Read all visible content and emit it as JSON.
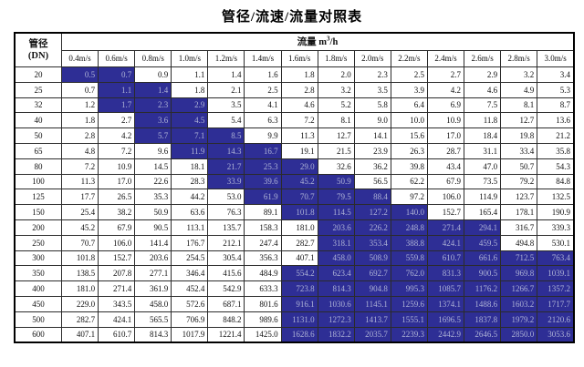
{
  "title": "管径/流速/流量对照表",
  "colors": {
    "highlight_bg": "#2e2e95",
    "highlight_text": "#aeb3d6",
    "border": "#000000",
    "page_bg": "#ffffff"
  },
  "table": {
    "corner_header": {
      "line1": "管径",
      "line2": "(DN)"
    },
    "flow_header": {
      "prefix": "流量 m",
      "sup": "3",
      "suffix": "/h"
    },
    "velocity_headers": [
      "0.4m/s",
      "0.6m/s",
      "0.8m/s",
      "1.0m/s",
      "1.2m/s",
      "1.4m/s",
      "1.6m/s",
      "1.8m/s",
      "2.0m/s",
      "2.2m/s",
      "2.4m/s",
      "2.6m/s",
      "2.8m/s",
      "3.0m/s"
    ],
    "rows": [
      {
        "dn": "20",
        "values": [
          "0.5",
          "0.7",
          "0.9",
          "1.1",
          "1.4",
          "1.6",
          "1.8",
          "2.0",
          "2.3",
          "2.5",
          "2.7",
          "2.9",
          "3.2",
          "3.4"
        ],
        "highlight": [
          0,
          1
        ]
      },
      {
        "dn": "25",
        "values": [
          "0.7",
          "1.1",
          "1.4",
          "1.8",
          "2.1",
          "2.5",
          "2.8",
          "3.2",
          "3.5",
          "3.9",
          "4.2",
          "4.6",
          "4.9",
          "5.3"
        ],
        "highlight": [
          1,
          2
        ]
      },
      {
        "dn": "32",
        "values": [
          "1.2",
          "1.7",
          "2.3",
          "2.9",
          "3.5",
          "4.1",
          "4.6",
          "5.2",
          "5.8",
          "6.4",
          "6.9",
          "7.5",
          "8.1",
          "8.7"
        ],
        "highlight": [
          1,
          2,
          3
        ]
      },
      {
        "dn": "40",
        "values": [
          "1.8",
          "2.7",
          "3.6",
          "4.5",
          "5.4",
          "6.3",
          "7.2",
          "8.1",
          "9.0",
          "10.0",
          "10.9",
          "11.8",
          "12.7",
          "13.6"
        ],
        "highlight": [
          2,
          3
        ]
      },
      {
        "dn": "50",
        "values": [
          "2.8",
          "4.2",
          "5.7",
          "7.1",
          "8.5",
          "9.9",
          "11.3",
          "12.7",
          "14.1",
          "15.6",
          "17.0",
          "18.4",
          "19.8",
          "21.2"
        ],
        "highlight": [
          2,
          3,
          4
        ]
      },
      {
        "dn": "65",
        "values": [
          "4.8",
          "7.2",
          "9.6",
          "11.9",
          "14.3",
          "16.7",
          "19.1",
          "21.5",
          "23.9",
          "26.3",
          "28.7",
          "31.1",
          "33.4",
          "35.8"
        ],
        "highlight": [
          3,
          4,
          5
        ]
      },
      {
        "dn": "80",
        "values": [
          "7.2",
          "10.9",
          "14.5",
          "18.1",
          "21.7",
          "25.3",
          "29.0",
          "32.6",
          "36.2",
          "39.8",
          "43.4",
          "47.0",
          "50.7",
          "54.3"
        ],
        "highlight": [
          4,
          5,
          6
        ]
      },
      {
        "dn": "100",
        "values": [
          "11.3",
          "17.0",
          "22.6",
          "28.3",
          "33.9",
          "39.6",
          "45.2",
          "50.9",
          "56.5",
          "62.2",
          "67.9",
          "73.5",
          "79.2",
          "84.8"
        ],
        "highlight": [
          4,
          5,
          6,
          7
        ]
      },
      {
        "dn": "125",
        "values": [
          "17.7",
          "26.5",
          "35.3",
          "44.2",
          "53.0",
          "61.9",
          "70.7",
          "79.5",
          "88.4",
          "97.2",
          "106.0",
          "114.9",
          "123.7",
          "132.5"
        ],
        "highlight": [
          5,
          6,
          7,
          8
        ]
      },
      {
        "dn": "150",
        "values": [
          "25.4",
          "38.2",
          "50.9",
          "63.6",
          "76.3",
          "89.1",
          "101.8",
          "114.5",
          "127.2",
          "140.0",
          "152.7",
          "165.4",
          "178.1",
          "190.9"
        ],
        "highlight": [
          6,
          7,
          8,
          9
        ]
      },
      {
        "dn": "200",
        "values": [
          "45.2",
          "67.9",
          "90.5",
          "113.1",
          "135.7",
          "158.3",
          "181.0",
          "203.6",
          "226.2",
          "248.8",
          "271.4",
          "294.1",
          "316.7",
          "339.3"
        ],
        "highlight": [
          7,
          8,
          9,
          10,
          11
        ]
      },
      {
        "dn": "250",
        "values": [
          "70.7",
          "106.0",
          "141.4",
          "176.7",
          "212.1",
          "247.4",
          "282.7",
          "318.1",
          "353.4",
          "388.8",
          "424.1",
          "459.5",
          "494.8",
          "530.1"
        ],
        "highlight": [
          7,
          8,
          9,
          10,
          11
        ]
      },
      {
        "dn": "300",
        "values": [
          "101.8",
          "152.7",
          "203.6",
          "254.5",
          "305.4",
          "356.3",
          "407.1",
          "458.0",
          "508.9",
          "559.8",
          "610.7",
          "661.6",
          "712.5",
          "763.4"
        ],
        "highlight": [
          7,
          8,
          9,
          10,
          11,
          12,
          13
        ]
      },
      {
        "dn": "350",
        "values": [
          "138.5",
          "207.8",
          "277.1",
          "346.4",
          "415.6",
          "484.9",
          "554.2",
          "623.4",
          "692.7",
          "762.0",
          "831.3",
          "900.5",
          "969.8",
          "1039.1"
        ],
        "highlight": [
          6,
          7,
          8,
          9,
          10,
          11,
          12,
          13
        ]
      },
      {
        "dn": "400",
        "values": [
          "181.0",
          "271.4",
          "361.9",
          "452.4",
          "542.9",
          "633.3",
          "723.8",
          "814.3",
          "904.8",
          "995.3",
          "1085.7",
          "1176.2",
          "1266.7",
          "1357.2"
        ],
        "highlight": [
          6,
          7,
          8,
          9,
          10,
          11,
          12,
          13
        ]
      },
      {
        "dn": "450",
        "values": [
          "229.0",
          "343.5",
          "458.0",
          "572.6",
          "687.1",
          "801.6",
          "916.1",
          "1030.6",
          "1145.1",
          "1259.6",
          "1374.1",
          "1488.6",
          "1603.2",
          "1717.7"
        ],
        "highlight": [
          6,
          7,
          8,
          9,
          10,
          11,
          12,
          13
        ]
      },
      {
        "dn": "500",
        "values": [
          "282.7",
          "424.1",
          "565.5",
          "706.9",
          "848.2",
          "989.6",
          "1131.0",
          "1272.3",
          "1413.7",
          "1555.1",
          "1696.5",
          "1837.8",
          "1979.2",
          "2120.6"
        ],
        "highlight": [
          6,
          7,
          8,
          9,
          10,
          11,
          12,
          13
        ]
      },
      {
        "dn": "600",
        "values": [
          "407.1",
          "610.7",
          "814.3",
          "1017.9",
          "1221.4",
          "1425.0",
          "1628.6",
          "1832.2",
          "2035.7",
          "2239.3",
          "2442.9",
          "2646.5",
          "2850.0",
          "3053.6"
        ],
        "highlight": [
          6,
          7,
          8,
          9,
          10,
          11,
          12,
          13
        ]
      }
    ]
  }
}
